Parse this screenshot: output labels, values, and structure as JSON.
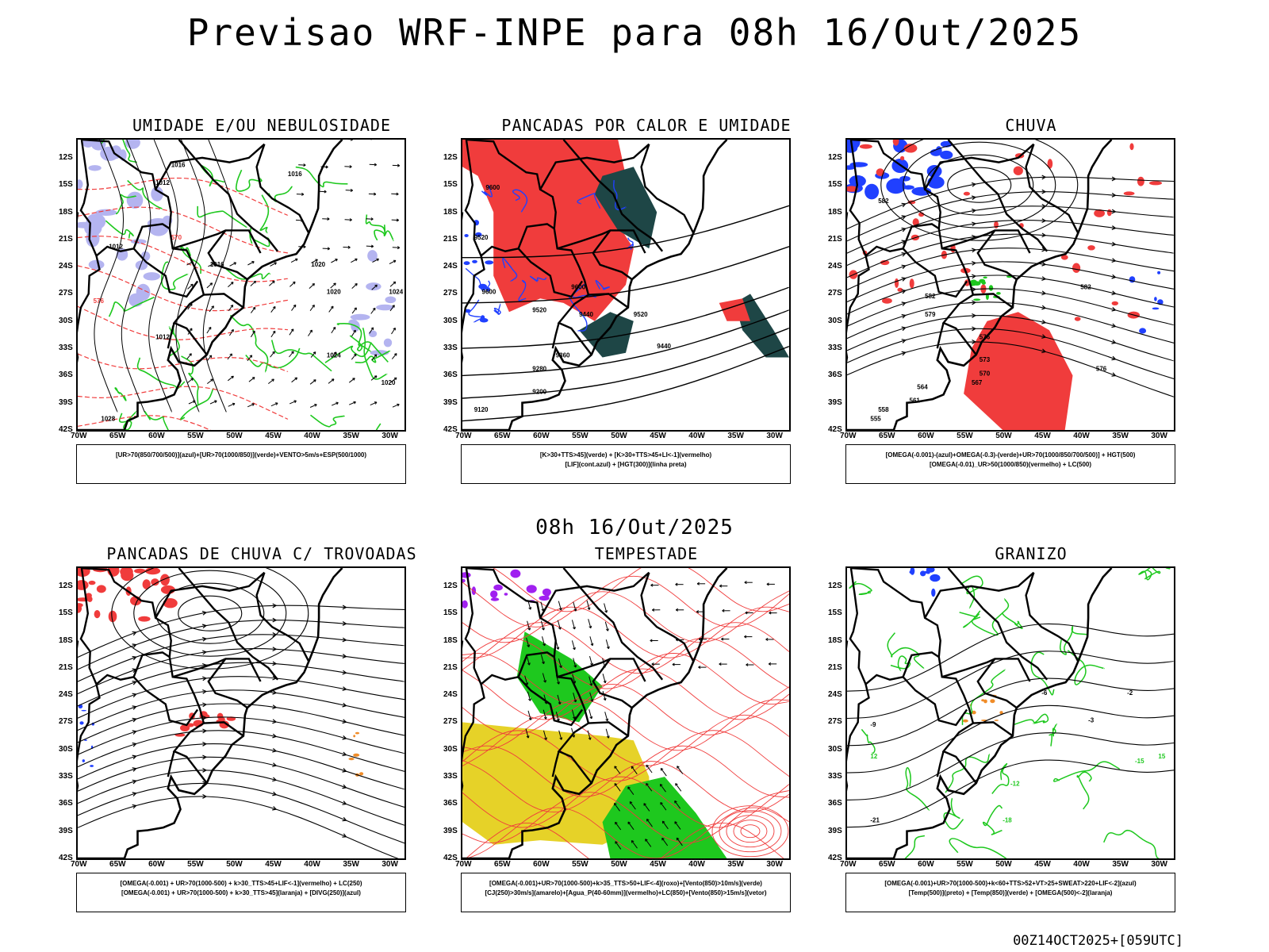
{
  "header": {
    "title": "Previsao WRF-INPE  para 08h 16/Out/2025",
    "subtitle": "08h 16/Out/2025",
    "footer": "00Z14OCT2025+[059UTC]"
  },
  "axes": {
    "lat_labels": [
      "12S",
      "15S",
      "18S",
      "21S",
      "24S",
      "27S",
      "30S",
      "33S",
      "36S",
      "39S",
      "42S"
    ],
    "lon_labels": [
      "70W",
      "65W",
      "60W",
      "55W",
      "50W",
      "45W",
      "40W",
      "35W",
      "30W"
    ]
  },
  "colors": {
    "red": "#f03c3c",
    "green": "#1ec81e",
    "blue": "#2040ff",
    "lilac": "#b4b4f0",
    "darkteal": "#1e4646",
    "purple": "#a020f0",
    "yellow": "#e6d228",
    "orange": "#f08c28"
  },
  "panels": [
    {
      "title": "UMIDADE E/OU NEBULOSIDADE",
      "legend_lines": [
        "[UR>70(850/700/500)](azul)+[UR>70(1000/850)](verde)+VENTO>5m/s+ESP(500/1000)"
      ],
      "contour_labels": [
        "1016",
        "1012",
        "1012",
        "1016",
        "1020",
        "1020",
        "1024",
        "1012",
        "1024",
        "1020",
        "1028",
        "1016",
        "570",
        "576"
      ]
    },
    {
      "title": "PANCADAS POR CALOR E UMIDADE",
      "legend_lines": [
        "[K>30+TTS>45](verde) + [K>30+TTS>45+LI<-1](vermelho)",
        "[LIF](cont.azul) + [HGT(300)](linha preta)"
      ],
      "contour_labels": [
        "9600",
        "9520",
        "9440",
        "9600",
        "9520",
        "9440",
        "9360",
        "9280",
        "9200",
        "9120",
        "9600",
        "9520"
      ]
    },
    {
      "title": "CHUVA",
      "legend_lines": [
        "[OMEGA(-0.001)-(azul)+OMEGA(-0.3)-(verde)+UR>70(1000/850/700/500)] + HGT(500)",
        "[OMEGA(-0.01)_UR>50(1000/850)(vermelho) + LC(500)"
      ],
      "contour_labels": [
        "582",
        "582",
        "579",
        "576",
        "573",
        "570",
        "567",
        "564",
        "561",
        "558",
        "555",
        "576",
        "582"
      ]
    },
    {
      "title": "PANCADAS DE CHUVA C/ TROVOADAS",
      "legend_lines": [
        "[OMEGA(-0.001) + UR>70(1000-500) + k>30_TTS>45+LIF<-1](vermelho) + LC(250)",
        "[OMEGA(-0.001) + UR>70(1000-500) + k>30_TTS>45](laranja) + [DIVG(250)](azul)"
      ],
      "contour_labels": []
    },
    {
      "title": "TEMPESTADE",
      "legend_lines": [
        "[OMEGA(-0.001)+UR>70(1000-500)+k>35_TTS>50+LIF<-4](roxo)+[Vento(850)>10m/s](verde)",
        "[CJ(250)>30m/s](amarelo)+[Agua_P(40-60mm)](vermelho)+LC(850)+[Vento(850)>15m/s](vetor)"
      ],
      "contour_labels": []
    },
    {
      "title": "GRANIZO",
      "legend_lines": [
        "[OMEGA(-0.001)+UR>70(1000-500)+k<60+TTS>52+VT>25+SWEAT>220+LIF<-2](azul)",
        "[Temp(500)](preto) + [Temp(850)](verde) + [OMEGA(500)<-2](laranja)"
      ],
      "contour_labels": [
        "-9",
        "-6",
        "-3",
        "12",
        "15",
        "-18",
        "-21",
        "-12",
        "-2",
        "-15"
      ]
    }
  ]
}
